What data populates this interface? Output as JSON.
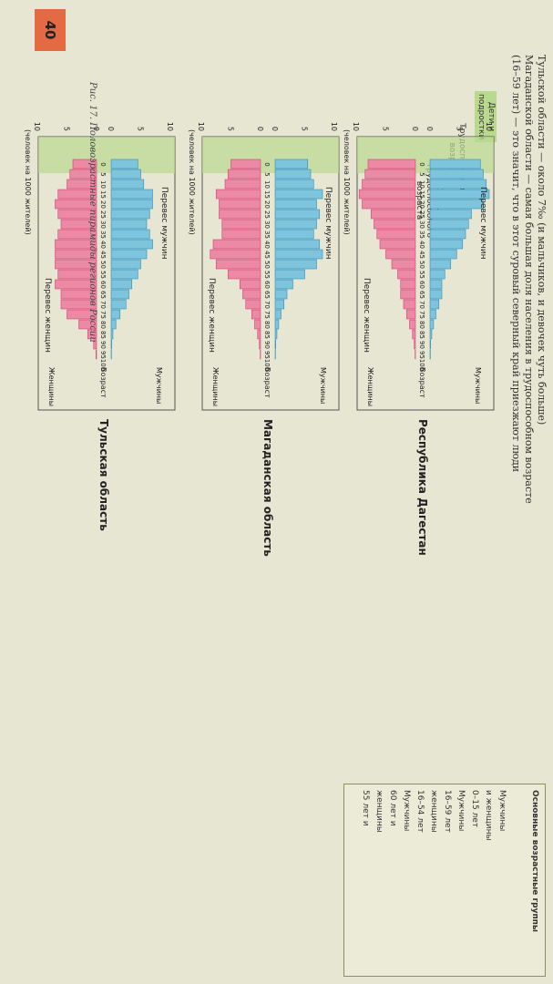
{
  "header": {
    "line1": "Тульской области — около 7‰ (и мальчиков, и девочек чуть больше)",
    "line2": "Магаданской области — самая большая доля населения в трудоспособном возрасте",
    "line3": "(16–59 лет) — это значит, что в этот суровый северный край приезжают люди"
  },
  "zones": {
    "children": "Дети и подростки",
    "working": "Трудоспособный возраст",
    "elderly": "Старше трудоспособного возраста"
  },
  "columns": {
    "men": "Мужчины",
    "age": "Возраст",
    "women": "Женщины"
  },
  "scale_left": [
    "10",
    "5",
    "0"
  ],
  "scale_right": [
    "0",
    "5",
    "10"
  ],
  "units": "(человек на 1000 жителей)",
  "ages": [
    "100",
    "95",
    "90",
    "85",
    "80",
    "75",
    "70",
    "65",
    "60",
    "55",
    "50",
    "45",
    "40",
    "35",
    "30",
    "25",
    "20",
    "15",
    "10",
    "5",
    "0"
  ],
  "panels": [
    {
      "title": "Республика Дагестан",
      "male_note": "Перевес мужчин",
      "female_note": "Перевес женщин"
    },
    {
      "title": "Магаданская область",
      "male_note": "Перевес мужчин",
      "female_note": "Перевес женщин"
    },
    {
      "title": "Тульская область",
      "male_note": "Перевес мужчин",
      "female_note": "Перевес женщин"
    }
  ],
  "caption": "Рис. 17. Половозрастные пирамиды регионов России",
  "page_number": "40",
  "side_box": {
    "title": "Основ­ные возраст­ные груп­пы",
    "lines": [
      "Мужчины",
      "и женщины",
      "0–15 лет",
      "Мужчины",
      "16–59 лет",
      "женщины",
      "16–54 лет",
      "Мужчины",
      "60 лет и",
      "женщины",
      "55 лет и"
    ]
  },
  "colors": {
    "male": "#7fc4dd",
    "male_edge": "#2b8fb6",
    "female": "#ec8aa6",
    "female_edge": "#d63f73",
    "kids_zone": "#b9d98f",
    "bg": "#e7e6d3"
  },
  "chart_data": [
    {
      "type": "bar",
      "title": "Республика Дагестан",
      "age_groups": [
        0,
        5,
        10,
        15,
        20,
        25,
        30,
        35,
        40,
        45,
        50,
        55,
        60,
        65,
        70,
        75,
        80,
        85,
        90,
        95,
        100
      ],
      "series": [
        {
          "name": "Мужчины",
          "values": [
            8.5,
            9,
            9.5,
            10,
            9,
            7,
            6.5,
            6,
            5.5,
            4.5,
            3.5,
            2.5,
            2,
            2,
            1.5,
            1,
            0.6,
            0.3,
            0.1,
            0.05,
            0
          ]
        },
        {
          "name": "Женщины",
          "values": [
            8,
            8.5,
            9,
            9.5,
            9,
            7.5,
            7,
            6.5,
            6,
            5,
            4,
            3,
            2.5,
            2.5,
            2,
            1.5,
            1,
            0.5,
            0.2,
            0.05,
            0
          ]
        }
      ],
      "xlim": [
        0,
        10
      ]
    },
    {
      "type": "bar",
      "title": "Магаданская область",
      "age_groups": [
        0,
        5,
        10,
        15,
        20,
        25,
        30,
        35,
        40,
        45,
        50,
        55,
        60,
        65,
        70,
        75,
        80,
        85,
        90,
        95,
        100
      ],
      "series": [
        {
          "name": "Мужчины",
          "values": [
            5.5,
            6,
            6.5,
            8,
            7,
            7.5,
            7,
            6.5,
            7.5,
            8,
            7,
            5,
            3,
            2,
            1.5,
            1,
            0.6,
            0.3,
            0.1,
            0.05,
            0
          ]
        },
        {
          "name": "Женщины",
          "values": [
            5,
            5.5,
            6,
            7.5,
            7,
            7,
            6.5,
            6.5,
            8,
            8.5,
            7.5,
            5.5,
            3.5,
            3,
            2.5,
            1.5,
            1,
            0.5,
            0.2,
            0.05,
            0
          ]
        }
      ],
      "xlim": [
        0,
        10
      ]
    },
    {
      "type": "bar",
      "title": "Тульская область",
      "age_groups": [
        0,
        5,
        10,
        15,
        20,
        25,
        30,
        35,
        40,
        45,
        50,
        55,
        60,
        65,
        70,
        75,
        80,
        85,
        90,
        95,
        100
      ],
      "series": [
        {
          "name": "Мужчины",
          "values": [
            4.5,
            5,
            5.5,
            7,
            7,
            6.5,
            6,
            6.5,
            7,
            6,
            5,
            4.5,
            3.5,
            3,
            2.5,
            1.5,
            0.8,
            0.3,
            0.1,
            0.05,
            0
          ]
        },
        {
          "name": "Женщины",
          "values": [
            4,
            4.5,
            5,
            6.5,
            7,
            6.5,
            6,
            6.5,
            7,
            7,
            7,
            6.5,
            7,
            6,
            6,
            5,
            3,
            1.5,
            0.5,
            0.1,
            0
          ]
        }
      ],
      "xlim": [
        0,
        10
      ]
    }
  ]
}
